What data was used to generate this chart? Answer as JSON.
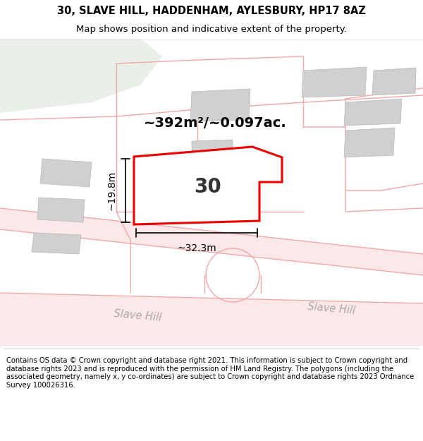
{
  "title_line1": "30, SLAVE HILL, HADDENHAM, AYLESBURY, HP17 8AZ",
  "title_line2": "Map shows position and indicative extent of the property.",
  "footer_text": "Contains OS data © Crown copyright and database right 2021. This information is subject to Crown copyright and database rights 2023 and is reproduced with the permission of HM Land Registry. The polygons (including the associated geometry, namely x, y co-ordinates) are subject to Crown copyright and database rights 2023 Ordnance Survey 100026316.",
  "area_label": "~392m²/~0.097ac.",
  "property_number": "30",
  "width_label": "~32.3m",
  "height_label": "~19.8m",
  "map_bg": "#f7f0f0",
  "green_color": "#e8f0e8",
  "road_fill": "#fce8e8",
  "plot_outline_color": "#ee0000",
  "plot_fill_color": "#ffffff",
  "building_color": "#d0d0d0",
  "parcel_line_color": "#f0a8a8",
  "street_label1": "Slave Hill",
  "street_label2": "Slave Hill",
  "dim_line_color": "#111111"
}
